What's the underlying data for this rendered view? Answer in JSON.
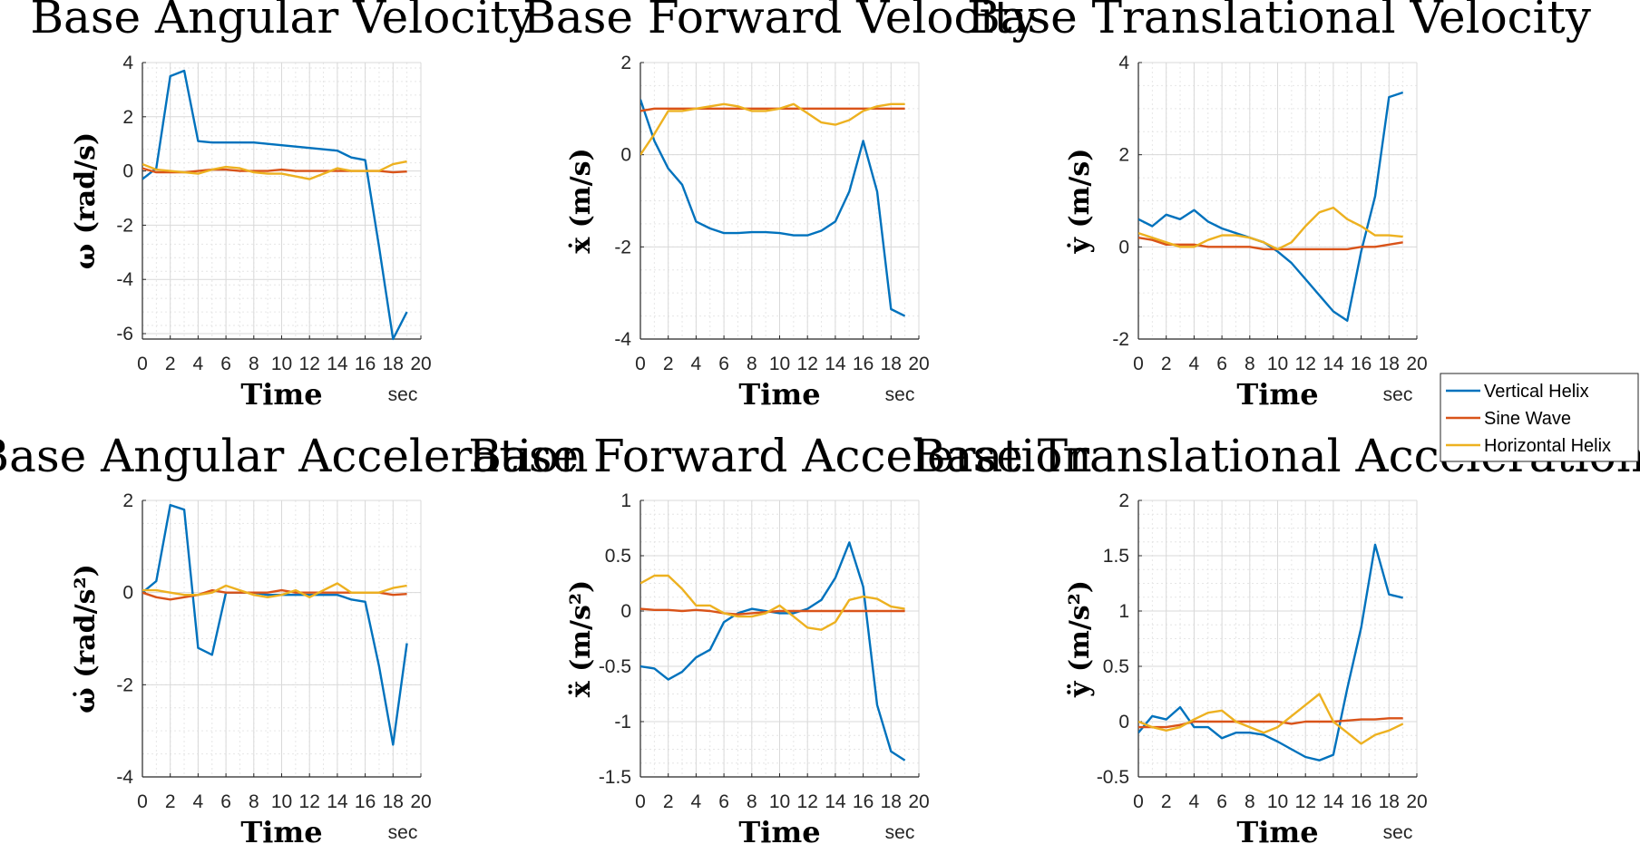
{
  "colors": {
    "Vertical Helix": "#0072BD",
    "Sine Wave": "#D95319",
    "Horizontal Helix": "#EDB120"
  },
  "legend": {
    "placement": "right",
    "entries": [
      "Vertical Helix",
      "Sine Wave",
      "Horizontal Helix"
    ]
  },
  "chart_data": [
    {
      "type": "line",
      "title": "Base Angular Velocity",
      "xlabel": "Time",
      "xunit": "sec",
      "ylabel": "ω (rad/s)",
      "xlim": [
        0,
        20
      ],
      "ylim": [
        -6.2,
        4
      ],
      "xticks": [
        0,
        2,
        4,
        6,
        8,
        10,
        12,
        14,
        16,
        18,
        20
      ],
      "yticks": [
        -6,
        -4,
        -2,
        0,
        2,
        4
      ],
      "grid": true,
      "x": [
        0,
        1,
        2,
        3,
        4,
        5,
        6,
        7,
        8,
        9,
        10,
        11,
        12,
        13,
        14,
        15,
        16,
        17,
        18,
        19
      ],
      "series": [
        {
          "name": "Vertical Helix",
          "values": [
            -0.3,
            0.1,
            3.5,
            3.7,
            1.1,
            1.05,
            1.05,
            1.05,
            1.05,
            1.0,
            0.95,
            0.9,
            0.85,
            0.8,
            0.75,
            0.5,
            0.4,
            -2.8,
            -6.2,
            -5.2
          ]
        },
        {
          "name": "Sine Wave",
          "values": [
            0.1,
            -0.05,
            -0.05,
            -0.05,
            0.0,
            0.05,
            0.05,
            0.0,
            0.0,
            0.0,
            0.05,
            0.0,
            0.0,
            0.0,
            0.0,
            0.0,
            0.0,
            0.0,
            -0.05,
            -0.02
          ]
        },
        {
          "name": "Horizontal Helix",
          "values": [
            0.25,
            0.05,
            0.0,
            -0.05,
            -0.1,
            0.05,
            0.15,
            0.1,
            -0.05,
            -0.1,
            -0.1,
            -0.2,
            -0.3,
            -0.1,
            0.1,
            0.0,
            0.0,
            0.0,
            0.25,
            0.35
          ]
        }
      ]
    },
    {
      "type": "line",
      "title": "Base Forward Velocity",
      "xlabel": "Time",
      "xunit": "sec",
      "ylabel": "ẋ (m/s)",
      "xlim": [
        0,
        20
      ],
      "ylim": [
        -4,
        2
      ],
      "xticks": [
        0,
        2,
        4,
        6,
        8,
        10,
        12,
        14,
        16,
        18,
        20
      ],
      "yticks": [
        -4,
        -2,
        0,
        2
      ],
      "grid": true,
      "x": [
        0,
        1,
        2,
        3,
        4,
        5,
        6,
        7,
        8,
        9,
        10,
        11,
        12,
        13,
        14,
        15,
        16,
        17,
        18,
        19
      ],
      "series": [
        {
          "name": "Vertical Helix",
          "values": [
            1.2,
            0.3,
            -0.3,
            -0.65,
            -1.45,
            -1.6,
            -1.7,
            -1.7,
            -1.68,
            -1.68,
            -1.7,
            -1.75,
            -1.75,
            -1.65,
            -1.45,
            -0.8,
            0.3,
            -0.8,
            -3.35,
            -3.5
          ]
        },
        {
          "name": "Sine Wave",
          "values": [
            0.95,
            1.0,
            1.0,
            1.0,
            1.0,
            1.0,
            1.0,
            1.0,
            1.0,
            1.0,
            1.0,
            1.0,
            1.0,
            1.0,
            1.0,
            1.0,
            1.0,
            1.0,
            1.0,
            1.0
          ]
        },
        {
          "name": "Horizontal Helix",
          "values": [
            0.0,
            0.45,
            0.95,
            0.95,
            1.0,
            1.05,
            1.1,
            1.05,
            0.95,
            0.95,
            1.0,
            1.1,
            0.9,
            0.7,
            0.65,
            0.75,
            0.95,
            1.05,
            1.1,
            1.1
          ]
        }
      ]
    },
    {
      "type": "line",
      "title": "Base Translational Velocity",
      "xlabel": "Time",
      "xunit": "sec",
      "ylabel": "ẏ (m/s)",
      "xlim": [
        0,
        20
      ],
      "ylim": [
        -2,
        4
      ],
      "xticks": [
        0,
        2,
        4,
        6,
        8,
        10,
        12,
        14,
        16,
        18,
        20
      ],
      "yticks": [
        -2,
        0,
        2,
        4
      ],
      "grid": true,
      "x": [
        0,
        1,
        2,
        3,
        4,
        5,
        6,
        7,
        8,
        9,
        10,
        11,
        12,
        13,
        14,
        15,
        16,
        17,
        18,
        19
      ],
      "series": [
        {
          "name": "Vertical Helix",
          "values": [
            0.6,
            0.45,
            0.7,
            0.6,
            0.8,
            0.55,
            0.4,
            0.3,
            0.2,
            0.1,
            -0.1,
            -0.35,
            -0.7,
            -1.05,
            -1.4,
            -1.6,
            -0.1,
            1.1,
            3.25,
            3.35
          ]
        },
        {
          "name": "Sine Wave",
          "values": [
            0.2,
            0.15,
            0.05,
            0.05,
            0.05,
            0.0,
            0.0,
            0.0,
            0.0,
            -0.05,
            -0.05,
            -0.05,
            -0.05,
            -0.05,
            -0.05,
            -0.05,
            0.0,
            0.0,
            0.05,
            0.1
          ]
        },
        {
          "name": "Horizontal Helix",
          "values": [
            0.3,
            0.2,
            0.1,
            0.0,
            0.0,
            0.15,
            0.25,
            0.25,
            0.2,
            0.1,
            -0.05,
            0.1,
            0.45,
            0.75,
            0.85,
            0.6,
            0.45,
            0.25,
            0.25,
            0.22
          ]
        }
      ]
    },
    {
      "type": "line",
      "title": "Base Angular Acceleration",
      "xlabel": "Time",
      "xunit": "sec",
      "ylabel": "ω̇ (rad/s²)",
      "xlim": [
        0,
        20
      ],
      "ylim": [
        -4,
        2
      ],
      "xticks": [
        0,
        2,
        4,
        6,
        8,
        10,
        12,
        14,
        16,
        18,
        20
      ],
      "yticks": [
        -4,
        -2,
        0,
        2
      ],
      "grid": true,
      "x": [
        0,
        1,
        2,
        3,
        4,
        5,
        6,
        7,
        8,
        9,
        10,
        11,
        12,
        13,
        14,
        15,
        16,
        17,
        18,
        19
      ],
      "series": [
        {
          "name": "Vertical Helix",
          "values": [
            0.0,
            0.25,
            1.9,
            1.8,
            -1.2,
            -1.35,
            0.0,
            0.0,
            0.0,
            -0.05,
            -0.05,
            -0.05,
            -0.05,
            -0.05,
            -0.05,
            -0.15,
            -0.2,
            -1.6,
            -3.3,
            -1.1
          ]
        },
        {
          "name": "Sine Wave",
          "values": [
            0.0,
            -0.1,
            -0.15,
            -0.1,
            -0.05,
            0.05,
            0.0,
            0.0,
            0.0,
            0.0,
            0.05,
            0.0,
            0.0,
            0.0,
            0.0,
            0.0,
            0.0,
            0.0,
            -0.05,
            -0.03
          ]
        },
        {
          "name": "Horizontal Helix",
          "values": [
            0.05,
            0.05,
            0.0,
            -0.05,
            -0.05,
            0.0,
            0.15,
            0.05,
            -0.05,
            -0.1,
            -0.05,
            0.05,
            -0.1,
            0.05,
            0.2,
            0.0,
            0.0,
            0.0,
            0.1,
            0.15
          ]
        }
      ]
    },
    {
      "type": "line",
      "title": "Base Forward Acceleration",
      "xlabel": "Time",
      "xunit": "sec",
      "ylabel": "ẍ (m/s²)",
      "xlim": [
        0,
        20
      ],
      "ylim": [
        -1.5,
        1
      ],
      "xticks": [
        0,
        2,
        4,
        6,
        8,
        10,
        12,
        14,
        16,
        18,
        20
      ],
      "yticks": [
        -1.5,
        -1,
        -0.5,
        0,
        0.5,
        1
      ],
      "grid": true,
      "x": [
        0,
        1,
        2,
        3,
        4,
        5,
        6,
        7,
        8,
        9,
        10,
        11,
        12,
        13,
        14,
        15,
        16,
        17,
        18,
        19
      ],
      "series": [
        {
          "name": "Vertical Helix",
          "values": [
            -0.5,
            -0.52,
            -0.62,
            -0.55,
            -0.42,
            -0.35,
            -0.1,
            -0.02,
            0.02,
            0.0,
            -0.02,
            -0.02,
            0.02,
            0.1,
            0.3,
            0.62,
            0.22,
            -0.85,
            -1.27,
            -1.35
          ]
        },
        {
          "name": "Sine Wave",
          "values": [
            0.02,
            0.01,
            0.01,
            0.0,
            0.01,
            0.0,
            -0.02,
            -0.03,
            -0.02,
            -0.01,
            0.0,
            0.0,
            0.0,
            0.0,
            0.0,
            0.0,
            0.0,
            0.0,
            0.0,
            0.0
          ]
        },
        {
          "name": "Horizontal Helix",
          "values": [
            0.25,
            0.32,
            0.32,
            0.2,
            0.05,
            0.05,
            -0.02,
            -0.05,
            -0.05,
            -0.02,
            0.05,
            -0.05,
            -0.15,
            -0.17,
            -0.1,
            0.1,
            0.13,
            0.11,
            0.04,
            0.02
          ]
        }
      ]
    },
    {
      "type": "line",
      "title": "Base Translational Acceleration",
      "xlabel": "Time",
      "xunit": "sec",
      "ylabel": "ÿ (m/s²)",
      "xlim": [
        0,
        20
      ],
      "ylim": [
        -0.5,
        2
      ],
      "xticks": [
        0,
        2,
        4,
        6,
        8,
        10,
        12,
        14,
        16,
        18,
        20
      ],
      "yticks": [
        -0.5,
        0,
        0.5,
        1,
        1.5,
        2
      ],
      "grid": true,
      "x": [
        0,
        1,
        2,
        3,
        4,
        5,
        6,
        7,
        8,
        9,
        10,
        11,
        12,
        13,
        14,
        15,
        16,
        17,
        18,
        19
      ],
      "series": [
        {
          "name": "Vertical Helix",
          "values": [
            -0.1,
            0.05,
            0.02,
            0.13,
            -0.05,
            -0.05,
            -0.15,
            -0.1,
            -0.1,
            -0.12,
            -0.18,
            -0.25,
            -0.32,
            -0.35,
            -0.3,
            0.3,
            0.85,
            1.6,
            1.15,
            1.12
          ]
        },
        {
          "name": "Sine Wave",
          "values": [
            -0.05,
            -0.05,
            -0.05,
            -0.03,
            0.0,
            0.0,
            0.0,
            0.0,
            0.0,
            0.0,
            0.0,
            -0.02,
            0.0,
            0.0,
            0.0,
            0.01,
            0.02,
            0.02,
            0.03,
            0.03
          ]
        },
        {
          "name": "Horizontal Helix",
          "values": [
            0.0,
            -0.05,
            -0.08,
            -0.05,
            0.02,
            0.08,
            0.1,
            0.0,
            -0.05,
            -0.1,
            -0.05,
            0.05,
            0.15,
            0.25,
            0.0,
            -0.1,
            -0.2,
            -0.12,
            -0.08,
            -0.02
          ]
        }
      ]
    }
  ]
}
